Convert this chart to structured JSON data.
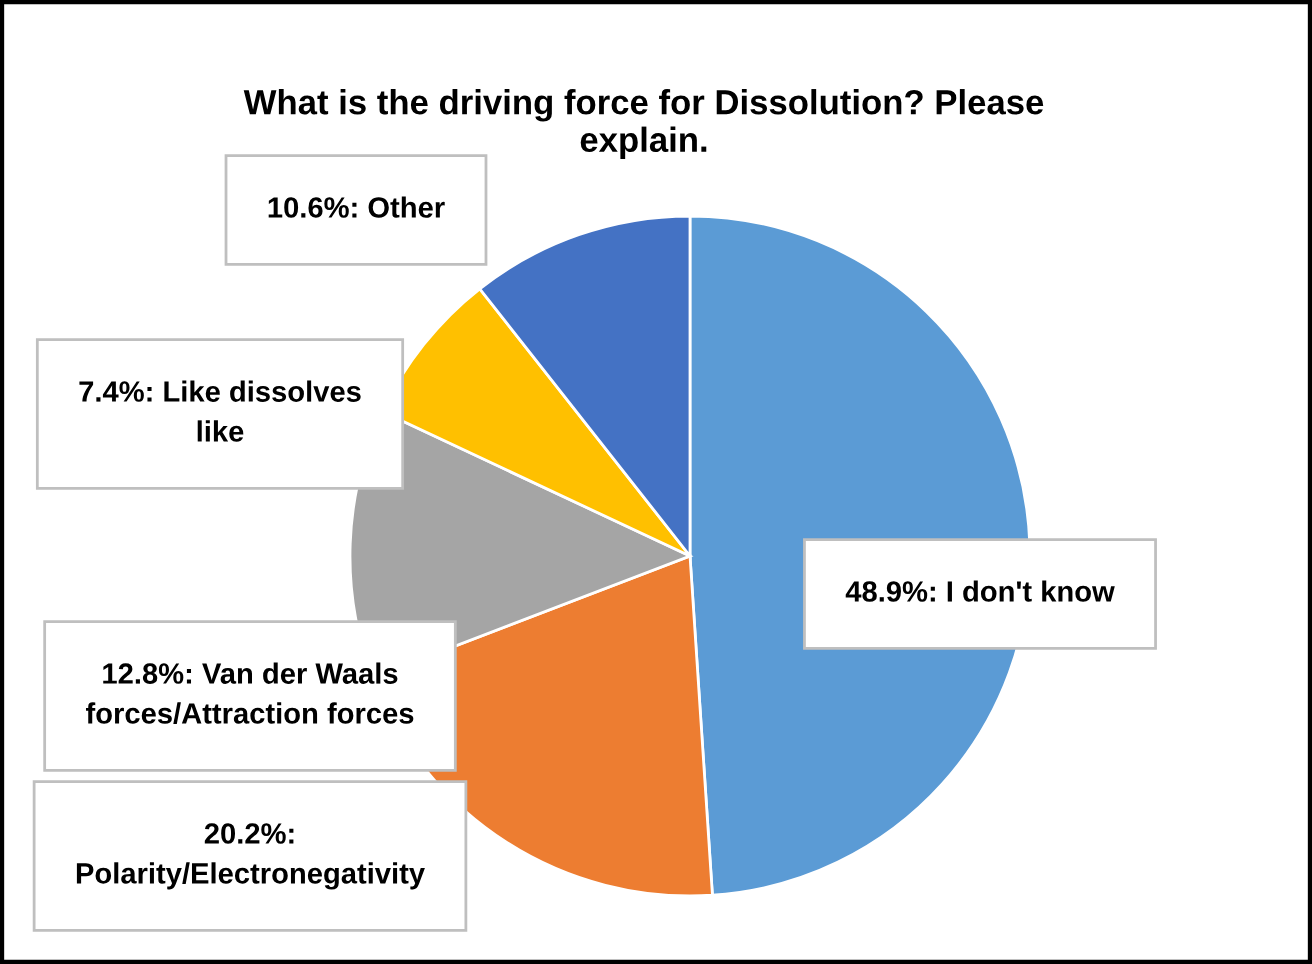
{
  "chart_data": {
    "type": "pie",
    "title": "What is the driving force for Dissolution? Please\nexplain.",
    "categories": [
      "48.9%: I don't know",
      "20.2%:\nPolarity/Electronegativity",
      "12.8%: Van der Waals\nforces/Attraction forces",
      "7.4%: Like dissolves\nlike",
      "10.6%: Other"
    ],
    "values": [
      48.9,
      20.2,
      12.8,
      7.4,
      10.6
    ],
    "colors": [
      "#5b9bd5",
      "#ed7d31",
      "#a5a5a5",
      "#ffc000",
      "#4472c4"
    ],
    "legend": false
  }
}
